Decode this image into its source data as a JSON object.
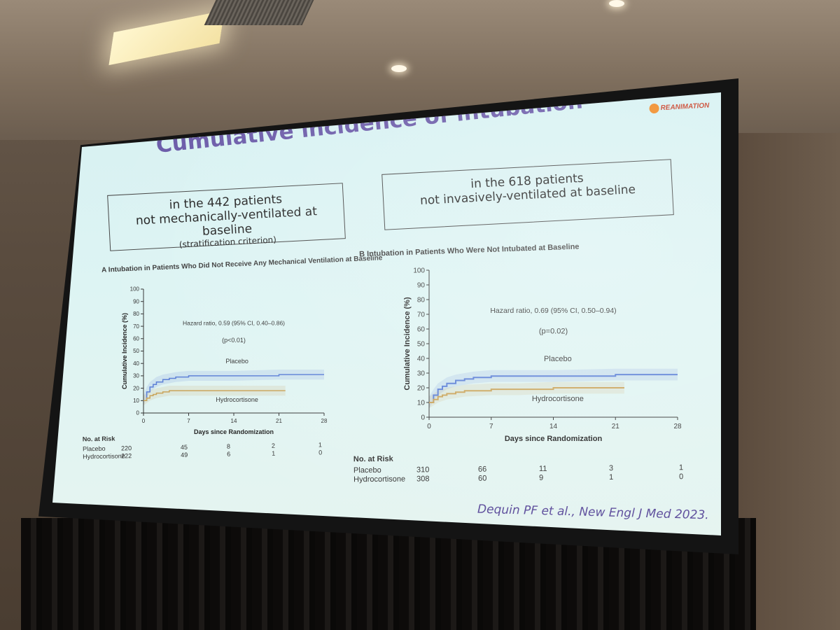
{
  "slide": {
    "title": "Cumulative incidence of intubation",
    "logo_text": "REANIMATION",
    "box_left": {
      "line1": "in the 442 patients",
      "line2": "not mechanically-ventilated at baseline",
      "line3": "(stratification criterion)"
    },
    "box_right": {
      "line1": "in the 618 patients",
      "line2": "not invasively-ventilated at baseline"
    },
    "citation": "Dequin PF et al., New Engl J Med  2023."
  },
  "colors": {
    "placebo": "#5b7fd6",
    "hydrocortisone": "#c9a358",
    "title": "#6a5aa8"
  },
  "chart_data": [
    {
      "type": "line",
      "panel_title": "A  Intubation in Patients Who Did Not Receive Any Mechanical Ventilation at Baseline",
      "xlabel": "Days since Randomization",
      "ylabel": "Cumulative Incidence (%)",
      "xlim": [
        0,
        28
      ],
      "ylim": [
        0,
        100
      ],
      "xticks": [
        "0",
        "7",
        "14",
        "21",
        "28"
      ],
      "yticks": [
        "0",
        "10",
        "20",
        "30",
        "40",
        "50",
        "60",
        "70",
        "80",
        "90",
        "100"
      ],
      "annotation": "Hazard ratio, 0.59 (95% CI, 0.40–0.86)",
      "pvalue": "(p<0.01)",
      "series": [
        {
          "name": "Placebo",
          "x": [
            0,
            0.5,
            1,
            1.5,
            2,
            3,
            4,
            5,
            7,
            10,
            14,
            21,
            28
          ],
          "y": [
            10,
            17,
            21,
            23,
            25,
            27,
            28,
            29,
            30,
            30,
            30,
            31,
            31
          ]
        },
        {
          "name": "Hydrocortisone",
          "x": [
            0,
            0.5,
            1,
            1.5,
            2,
            3,
            4,
            7,
            10,
            14,
            21,
            22
          ],
          "y": [
            10,
            12,
            14,
            15,
            16,
            17,
            18,
            18,
            18,
            18,
            18,
            18
          ]
        }
      ],
      "risk_table": {
        "title": "No. at Risk",
        "rows": [
          {
            "label": "Placebo",
            "values": [
              "220",
              "45",
              "8",
              "2",
              "1"
            ]
          },
          {
            "label": "Hydrocortisone",
            "values": [
              "222",
              "49",
              "6",
              "1",
              "0"
            ]
          }
        ]
      }
    },
    {
      "type": "line",
      "panel_title": "B  Intubation in Patients Who Were Not Intubated at Baseline",
      "xlabel": "Days since Randomization",
      "ylabel": "Cumulative Incidence (%)",
      "xlim": [
        0,
        28
      ],
      "ylim": [
        0,
        100
      ],
      "xticks": [
        "0",
        "7",
        "14",
        "21",
        "28"
      ],
      "yticks": [
        "0",
        "10",
        "20",
        "30",
        "40",
        "50",
        "60",
        "70",
        "80",
        "90",
        "100"
      ],
      "annotation": "Hazard ratio, 0.69 (95% CI, 0.50–0.94)",
      "pvalue": "(p=0.02)",
      "series": [
        {
          "name": "Placebo",
          "x": [
            0,
            0.5,
            1,
            1.5,
            2,
            3,
            4,
            5,
            7,
            10,
            14,
            21,
            28
          ],
          "y": [
            10,
            15,
            19,
            21,
            23,
            25,
            26,
            27,
            28,
            28,
            28,
            29,
            29
          ]
        },
        {
          "name": "Hydrocortisone",
          "x": [
            0,
            0.5,
            1,
            1.5,
            2,
            3,
            4,
            7,
            10,
            14,
            21,
            22
          ],
          "y": [
            10,
            12,
            14,
            15,
            16,
            17,
            18,
            19,
            19,
            20,
            20,
            20
          ]
        }
      ],
      "risk_table": {
        "title": "No. at Risk",
        "rows": [
          {
            "label": "Placebo",
            "values": [
              "310",
              "66",
              "11",
              "3",
              "1"
            ]
          },
          {
            "label": "Hydrocortisone",
            "values": [
              "308",
              "60",
              "9",
              "1",
              "0"
            ]
          }
        ]
      }
    }
  ]
}
